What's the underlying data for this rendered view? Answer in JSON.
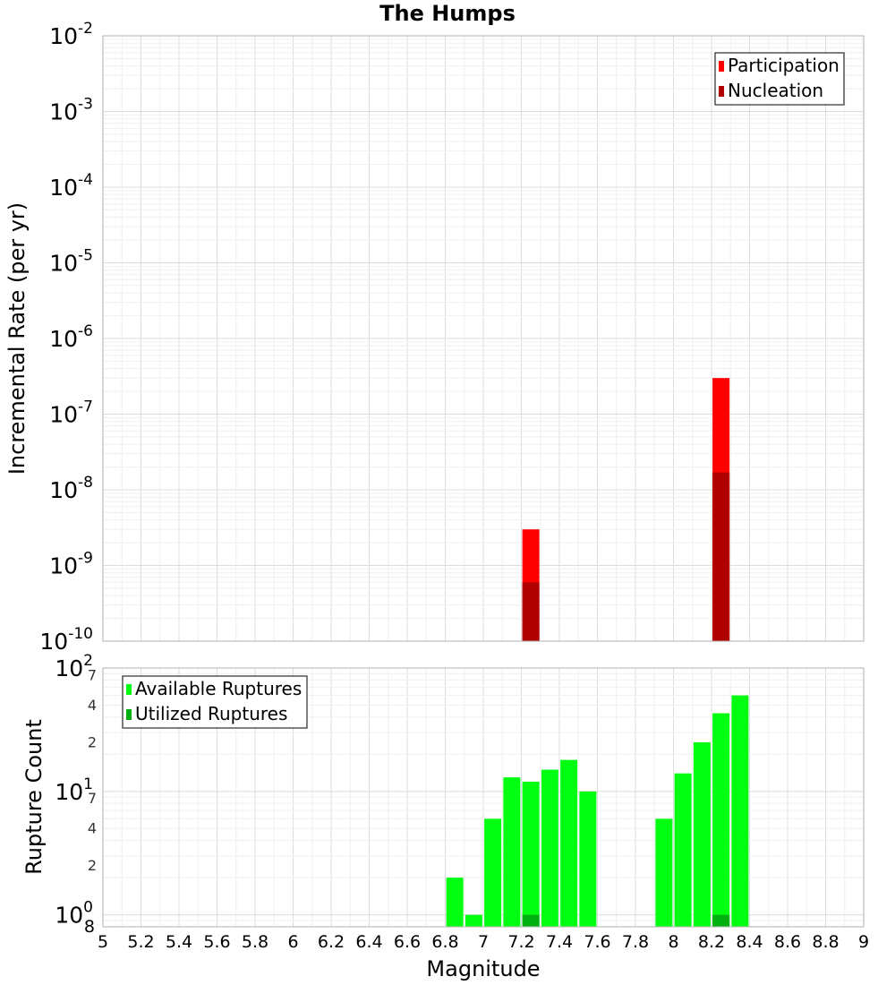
{
  "chart_data": {
    "title": "The Humps",
    "xlabel": "Magnitude",
    "xlim": [
      5,
      9
    ],
    "x_ticks": [
      "5",
      "5.2",
      "5.4",
      "5.6",
      "5.8",
      "6",
      "6.2",
      "6.4",
      "6.6",
      "6.8",
      "7",
      "7.2",
      "7.4",
      "7.6",
      "7.8",
      "8",
      "8.2",
      "8.4",
      "8.6",
      "8.8",
      "9"
    ],
    "panels": [
      {
        "type": "bar",
        "ylabel": "Incremental Rate (per yr)",
        "yscale": "log",
        "ylim": [
          1e-10,
          0.01
        ],
        "grid": true,
        "legend_position": "top-right",
        "y_ticks": [
          {
            "base": "10",
            "exp": "-10",
            "value": 1e-10
          },
          {
            "base": "10",
            "exp": "-9",
            "value": 1e-09
          },
          {
            "base": "10",
            "exp": "-8",
            "value": 1e-08
          },
          {
            "base": "10",
            "exp": "-7",
            "value": 1e-07
          },
          {
            "base": "10",
            "exp": "-6",
            "value": 1e-06
          },
          {
            "base": "10",
            "exp": "-5",
            "value": 1e-05
          },
          {
            "base": "10",
            "exp": "-4",
            "value": 0.0001
          },
          {
            "base": "10",
            "exp": "-3",
            "value": 0.001
          },
          {
            "base": "10",
            "exp": "-2",
            "value": 0.01
          }
        ],
        "series": [
          {
            "name": "Participation",
            "color": "#ff0000",
            "x": [
              7.25,
              8.25
            ],
            "values": [
              3e-09,
              3e-07
            ]
          },
          {
            "name": "Nucleation",
            "color": "#b00000",
            "x": [
              7.25,
              8.25
            ],
            "values": [
              6e-10,
              1.7e-08
            ]
          }
        ]
      },
      {
        "type": "bar",
        "ylabel": "Rupture Count",
        "yscale": "log",
        "ylim": [
          0.8,
          100
        ],
        "grid": true,
        "legend_position": "top-left",
        "y_ticks": [
          {
            "base": "10",
            "exp": "0",
            "value": 1
          },
          {
            "base": "10",
            "exp": "1",
            "value": 10
          },
          {
            "base": "10",
            "exp": "2",
            "value": 100
          }
        ],
        "y_minor_ticks": [
          {
            "label": "8",
            "value": 0.8
          },
          {
            "label": "2",
            "value": 2
          },
          {
            "label": "4",
            "value": 4
          },
          {
            "label": "7",
            "value": 7
          },
          {
            "label": "2",
            "value": 20
          },
          {
            "label": "4",
            "value": 40
          },
          {
            "label": "7",
            "value": 70
          }
        ],
        "series": [
          {
            "name": "Available Ruptures",
            "color": "#00ff11",
            "x": [
              6.85,
              6.95,
              7.05,
              7.15,
              7.25,
              7.35,
              7.45,
              7.55,
              7.95,
              8.05,
              8.15,
              8.25,
              8.35
            ],
            "values": [
              2,
              1,
              6,
              13,
              12,
              15,
              18,
              10,
              6,
              14,
              25,
              43,
              60
            ]
          },
          {
            "name": "Utilized Ruptures",
            "color": "#00b010",
            "x": [
              7.25,
              8.25
            ],
            "values": [
              1,
              1
            ]
          }
        ]
      }
    ]
  }
}
